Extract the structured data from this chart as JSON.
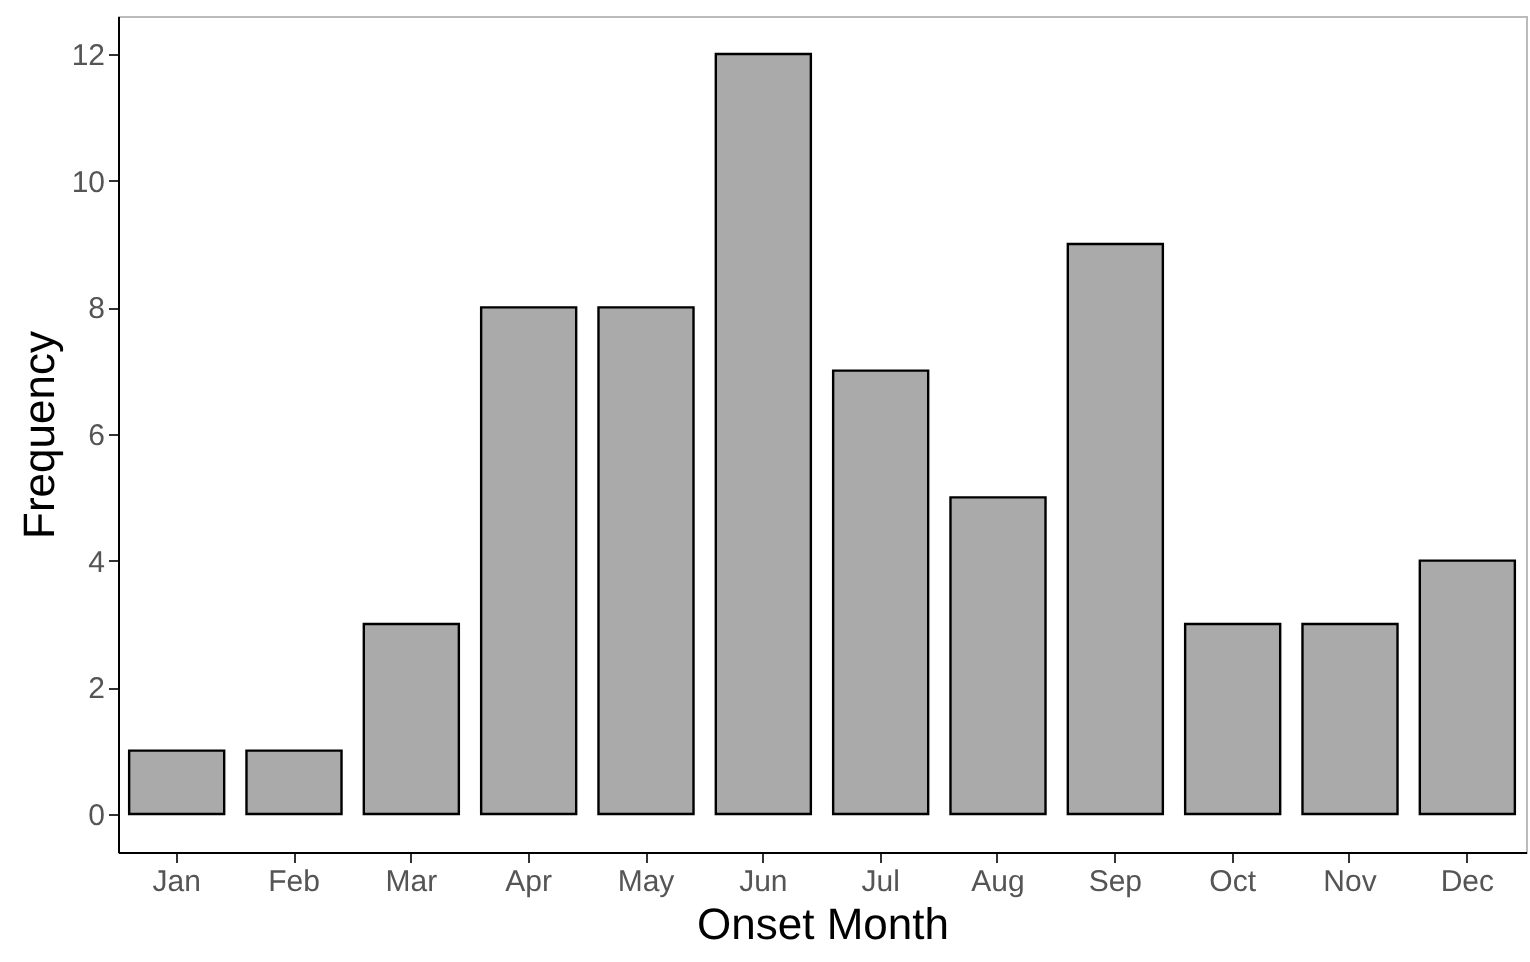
{
  "chart_data": {
    "type": "bar",
    "xlabel": "Onset Month",
    "ylabel": "Frequency",
    "categories": [
      "Jan",
      "Feb",
      "Mar",
      "Apr",
      "May",
      "Jun",
      "Jul",
      "Aug",
      "Sep",
      "Oct",
      "Nov",
      "Dec"
    ],
    "values": [
      1,
      1,
      3,
      8,
      8,
      12,
      7,
      5,
      9,
      3,
      3,
      4
    ],
    "color": "#aaaaaa",
    "ylim": [
      -0.6,
      12.6
    ],
    "yticks": [
      0,
      2,
      4,
      6,
      8,
      10,
      12
    ],
    "grid": false
  }
}
